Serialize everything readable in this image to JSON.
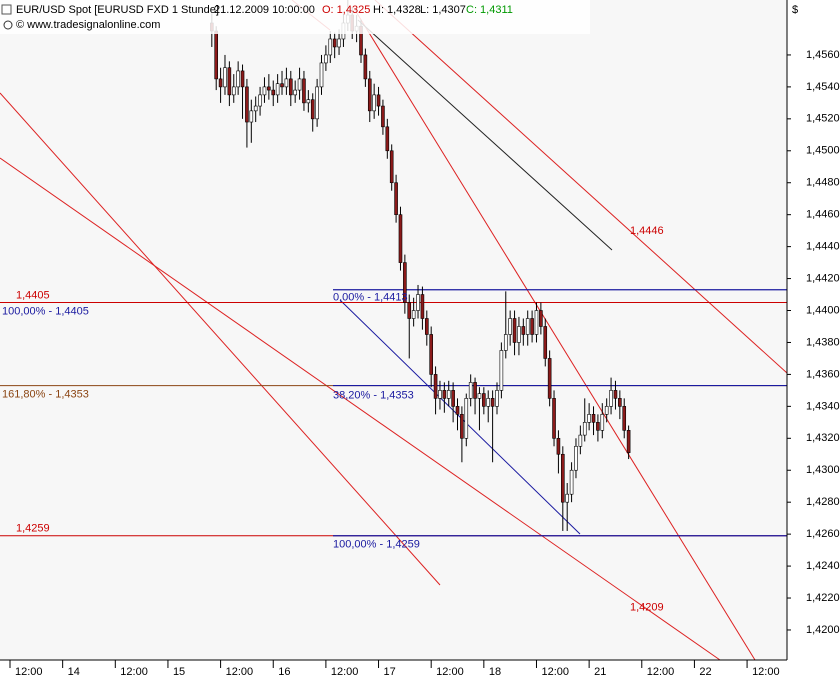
{
  "chart_data": {
    "type": "candlestick",
    "title": "EUR/USD Spot [EURUSD FXD  1 Stunde]",
    "subtitle": "21.12.2009 10:00:00",
    "ohlc_labels": [
      {
        "text": "O: 1,4325",
        "color": "#cc0000"
      },
      {
        "text": "H: 1,4328",
        "color": "#000000"
      },
      {
        "text": "L: 1,4307",
        "color": "#000000"
      },
      {
        "text": "C: 1,4311",
        "color": "#009900"
      }
    ],
    "source": "© www.tradesignalonline.com",
    "y_unit": "$",
    "grid": false,
    "up_color": "#ffffff",
    "down_color": "#8b1a1a",
    "outline_color": "#000000",
    "xlim": [
      9.72,
      189.1
    ],
    "ylim": [
      1.41812,
      1.45944
    ],
    "xticks": [
      {
        "value": 12,
        "label": "12:00"
      },
      {
        "value": 24,
        "label": "14"
      },
      {
        "value": 36,
        "label": "12:00"
      },
      {
        "value": 48,
        "label": "15"
      },
      {
        "value": 60,
        "label": "12:00"
      },
      {
        "value": 72,
        "label": "16"
      },
      {
        "value": 84,
        "label": "12:00"
      },
      {
        "value": 96,
        "label": "17"
      },
      {
        "value": 108,
        "label": "12:00"
      },
      {
        "value": 120,
        "label": "18"
      },
      {
        "value": 132,
        "label": "12:00"
      },
      {
        "value": 144,
        "label": "21"
      },
      {
        "value": 156,
        "label": "12:00"
      },
      {
        "value": 168,
        "label": "22"
      },
      {
        "value": 180,
        "label": "12:00"
      }
    ],
    "yticks": [
      {
        "value": 1.42,
        "label": "1,4200"
      },
      {
        "value": 1.422,
        "label": "1,4220"
      },
      {
        "value": 1.424,
        "label": "1,4240"
      },
      {
        "value": 1.426,
        "label": "1,4260"
      },
      {
        "value": 1.428,
        "label": "1,4280"
      },
      {
        "value": 1.43,
        "label": "1,4300"
      },
      {
        "value": 1.432,
        "label": "1,4320"
      },
      {
        "value": 1.434,
        "label": "1,4340"
      },
      {
        "value": 1.436,
        "label": "1,4360"
      },
      {
        "value": 1.438,
        "label": "1,4380"
      },
      {
        "value": 1.44,
        "label": "1,4400"
      },
      {
        "value": 1.442,
        "label": "1,4420"
      },
      {
        "value": 1.444,
        "label": "1,4440"
      },
      {
        "value": 1.446,
        "label": "1,4460"
      },
      {
        "value": 1.448,
        "label": "1,4480"
      },
      {
        "value": 1.45,
        "label": "1,4500"
      },
      {
        "value": 1.452,
        "label": "1,4520"
      },
      {
        "value": 1.454,
        "label": "1,4540"
      },
      {
        "value": 1.456,
        "label": "1,4560"
      }
    ],
    "annotations": [
      {
        "text": "1,4405",
        "value": 1.4405,
        "color": "#cc0000"
      },
      {
        "text": "100,00% - 1,4405",
        "value": 1.4405,
        "color": "#1a1aa0"
      },
      {
        "text": "161,80% - 1,4353",
        "value": 1.4353,
        "color": "#8b4513"
      },
      {
        "text": "1,4259",
        "value": 1.4259,
        "color": "#cc0000"
      },
      {
        "text": "0,00% - 1,4413",
        "value": 1.4413,
        "color": "#1a1aa0"
      },
      {
        "text": "38,20% - 1,4353",
        "value": 1.4353,
        "color": "#1a1aa0"
      },
      {
        "text": "100,00% - 1,4259",
        "value": 1.4259,
        "color": "#1a1aa0"
      },
      {
        "text": "1,4446",
        "value": 1.4446,
        "color": "#cc0000"
      },
      {
        "text": "1,4209",
        "value": 1.4209,
        "color": "#cc0000"
      }
    ],
    "x": [
      58,
      59,
      60,
      61,
      62,
      63,
      64,
      65,
      66,
      67,
      68,
      69,
      70,
      71,
      72,
      73,
      74,
      75,
      76,
      77,
      78,
      79,
      80,
      81,
      82,
      83,
      84,
      85,
      86,
      87,
      88,
      89,
      90,
      91,
      92,
      93,
      94,
      95,
      96,
      97,
      98,
      99,
      100,
      101,
      102,
      103,
      104,
      105,
      106,
      107,
      108,
      109,
      110,
      111,
      112,
      113,
      114,
      115,
      116,
      117,
      118,
      119,
      120,
      121,
      122,
      123,
      124,
      125,
      126,
      127,
      128,
      129,
      130,
      131,
      132,
      133,
      134,
      135,
      136,
      137,
      138,
      139,
      140,
      141,
      142,
      143,
      144,
      145,
      146,
      147,
      148,
      149,
      150,
      151,
      152,
      153
    ],
    "open": [
      1.458,
      1.4575,
      1.4545,
      1.454,
      1.4552,
      1.4535,
      1.454,
      1.455,
      1.454,
      1.4518,
      1.4525,
      1.4528,
      1.4535,
      1.454,
      1.4538,
      1.4535,
      1.4542,
      1.454,
      1.4545,
      1.4535,
      1.4538,
      1.4545,
      1.453,
      1.4532,
      1.452,
      1.454,
      1.4555,
      1.456,
      1.457,
      1.4565,
      1.457,
      1.458,
      1.4585,
      1.4575,
      1.4578,
      1.456,
      1.4545,
      1.4525,
      1.4535,
      1.4528,
      1.4515,
      1.45,
      1.448,
      1.446,
      1.443,
      1.4405,
      1.4395,
      1.44,
      1.441,
      1.4395,
      1.4385,
      1.436,
      1.4345,
      1.435,
      1.4345,
      1.435,
      1.434,
      1.4335,
      1.432,
      1.4345,
      1.4355,
      1.4345,
      1.4348,
      1.434,
      1.4345,
      1.434,
      1.435,
      1.4375,
      1.4385,
      1.4395,
      1.438,
      1.439,
      1.4385,
      1.4395,
      1.4385,
      1.44,
      1.439,
      1.437,
      1.4345,
      1.432,
      1.431,
      1.428,
      1.4285,
      1.43,
      1.4315,
      1.4322,
      1.433,
      1.4335,
      1.433,
      1.4325,
      1.4335,
      1.434,
      1.435,
      1.4345,
      1.434,
      1.4325
    ],
    "high": [
      1.4586,
      1.4578,
      1.4552,
      1.456,
      1.4556,
      1.4548,
      1.4556,
      1.4554,
      1.4545,
      1.4532,
      1.4534,
      1.454,
      1.4546,
      1.4548,
      1.4544,
      1.4548,
      1.455,
      1.4552,
      1.455,
      1.4544,
      1.4552,
      1.455,
      1.4538,
      1.4536,
      1.4545,
      1.456,
      1.4566,
      1.4575,
      1.4574,
      1.4576,
      1.4586,
      1.4595,
      1.459,
      1.4585,
      1.4582,
      1.4564,
      1.455,
      1.4542,
      1.454,
      1.4532,
      1.452,
      1.4504,
      1.4485,
      1.4465,
      1.4435,
      1.441,
      1.4408,
      1.4416,
      1.4415,
      1.44,
      1.439,
      1.4365,
      1.4356,
      1.4355,
      1.4356,
      1.4355,
      1.4345,
      1.434,
      1.4348,
      1.436,
      1.4358,
      1.4352,
      1.4352,
      1.435,
      1.435,
      1.4355,
      1.438,
      1.4412,
      1.44,
      1.44,
      1.4396,
      1.4395,
      1.44,
      1.44,
      1.4405,
      1.4405,
      1.4395,
      1.4375,
      1.435,
      1.4325,
      1.4315,
      1.4292,
      1.4305,
      1.432,
      1.4328,
      1.4345,
      1.4342,
      1.434,
      1.4335,
      1.4342,
      1.4345,
      1.4358,
      1.4356,
      1.435,
      1.4345,
      1.4328
    ],
    "low": [
      1.4565,
      1.4538,
      1.453,
      1.4535,
      1.4528,
      1.453,
      1.4535,
      1.452,
      1.4502,
      1.4505,
      1.4518,
      1.4522,
      1.453,
      1.4532,
      1.4528,
      1.453,
      1.4535,
      1.4535,
      1.4528,
      1.453,
      1.4532,
      1.4525,
      1.4524,
      1.4512,
      1.4515,
      1.4535,
      1.455,
      1.4555,
      1.4558,
      1.456,
      1.4565,
      1.4575,
      1.457,
      1.4568,
      1.4555,
      1.454,
      1.4518,
      1.452,
      1.4522,
      1.451,
      1.4495,
      1.4475,
      1.4455,
      1.4425,
      1.4398,
      1.437,
      1.439,
      1.4395,
      1.4388,
      1.4378,
      1.4352,
      1.4335,
      1.4338,
      1.4336,
      1.434,
      1.433,
      1.4325,
      1.4305,
      1.4315,
      1.434,
      1.4335,
      1.4325,
      1.4335,
      1.433,
      1.4305,
      1.4335,
      1.4345,
      1.437,
      1.4378,
      1.4372,
      1.4372,
      1.4378,
      1.4378,
      1.438,
      1.438,
      1.4385,
      1.4365,
      1.434,
      1.4315,
      1.4298,
      1.4262,
      1.4262,
      1.428,
      1.4295,
      1.431,
      1.4318,
      1.4325,
      1.4322,
      1.4318,
      1.432,
      1.433,
      1.4335,
      1.4338,
      1.4332,
      1.432,
      1.4307
    ],
    "close": [
      1.4575,
      1.4545,
      1.454,
      1.4552,
      1.4535,
      1.454,
      1.455,
      1.454,
      1.4518,
      1.4525,
      1.4528,
      1.4535,
      1.454,
      1.4538,
      1.4535,
      1.4542,
      1.454,
      1.4545,
      1.4535,
      1.4538,
      1.4545,
      1.453,
      1.4532,
      1.452,
      1.454,
      1.4555,
      1.456,
      1.457,
      1.4565,
      1.457,
      1.458,
      1.4585,
      1.4575,
      1.4578,
      1.456,
      1.4545,
      1.4525,
      1.4535,
      1.4528,
      1.4515,
      1.45,
      1.448,
      1.446,
      1.443,
      1.4405,
      1.4395,
      1.44,
      1.441,
      1.4395,
      1.4385,
      1.436,
      1.4345,
      1.435,
      1.4345,
      1.435,
      1.434,
      1.4335,
      1.432,
      1.4345,
      1.4355,
      1.4345,
      1.4348,
      1.434,
      1.4345,
      1.434,
      1.435,
      1.4375,
      1.4385,
      1.4395,
      1.438,
      1.439,
      1.4385,
      1.4395,
      1.4385,
      1.44,
      1.439,
      1.437,
      1.4345,
      1.432,
      1.431,
      1.428,
      1.4285,
      1.43,
      1.4315,
      1.4322,
      1.433,
      1.4335,
      1.433,
      1.4325,
      1.4335,
      1.434,
      1.435,
      1.4345,
      1.434,
      1.4325,
      1.4311
    ]
  }
}
